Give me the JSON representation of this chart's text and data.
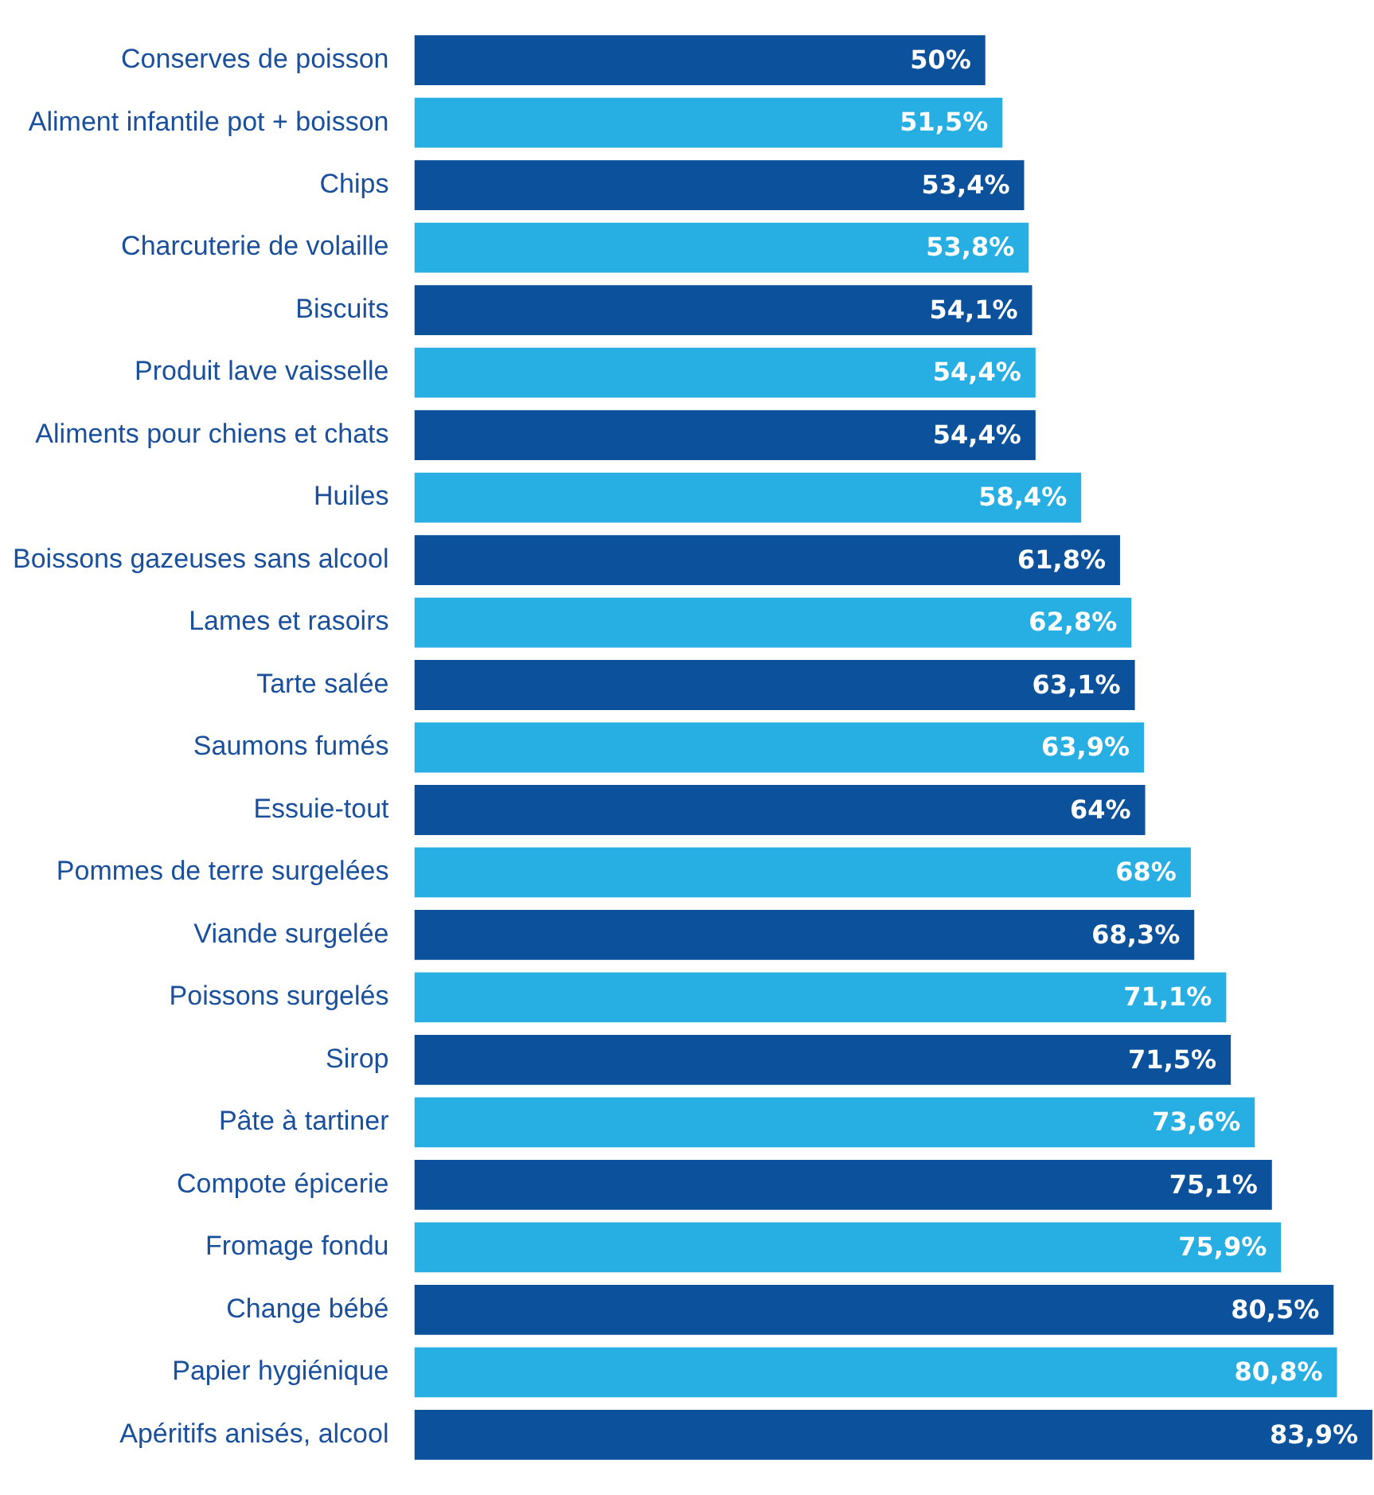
{
  "chart_data": {
    "type": "bar",
    "orientation": "horizontal",
    "categories": [
      "Conserves de poisson",
      "Aliment infantile pot + boisson",
      "Chips",
      "Charcuterie de volaille",
      "Biscuits",
      "Produit lave vaisselle",
      "Aliments pour chiens et chats",
      "Huiles",
      "Boissons gazeuses sans alcool",
      "Lames et rasoirs",
      "Tarte salée",
      "Saumons fumés",
      "Essuie-tout",
      "Pommes de terre surgelées",
      "Viande surgelée",
      "Poissons surgelés",
      "Sirop",
      "Pâte à tartiner",
      "Compote épicerie",
      "Fromage fondu",
      "Change bébé",
      "Papier hygiénique",
      "Apéritifs anisés, alcool"
    ],
    "values": [
      50,
      51.5,
      53.4,
      53.8,
      54.1,
      54.4,
      54.4,
      58.4,
      61.8,
      62.8,
      63.1,
      63.9,
      64,
      68,
      68.3,
      71.1,
      71.5,
      73.6,
      75.1,
      75.9,
      80.5,
      80.8,
      83.9
    ],
    "colors": [
      "#0b519c",
      "#27aee3",
      "#0b519c",
      "#27aee3",
      "#0b519c",
      "#27aee3",
      "#0b519c",
      "#27aee3",
      "#0b519c",
      "#27aee3",
      "#0b519c",
      "#27aee3",
      "#0b519c",
      "#27aee3",
      "#0b519c",
      "#27aee3",
      "#0b519c",
      "#27aee3",
      "#0b519c",
      "#27aee3",
      "#0b519c",
      "#27aee3",
      "#0b519c"
    ],
    "value_labels": [
      "50%",
      "51,5%",
      "53,4%",
      "53,8%",
      "54,1%",
      "54,4%",
      "54,4%",
      "58,4%",
      "61,8%",
      "62,8%",
      "63,1%",
      "63,9%",
      "64%",
      "68%",
      "68,3%",
      "71,1%",
      "71,5%",
      "73,6%",
      "75,1%",
      "75,9%",
      "80,5%",
      "80,8%",
      "83,9%"
    ],
    "tick_labels": "y",
    "legend": false
  }
}
